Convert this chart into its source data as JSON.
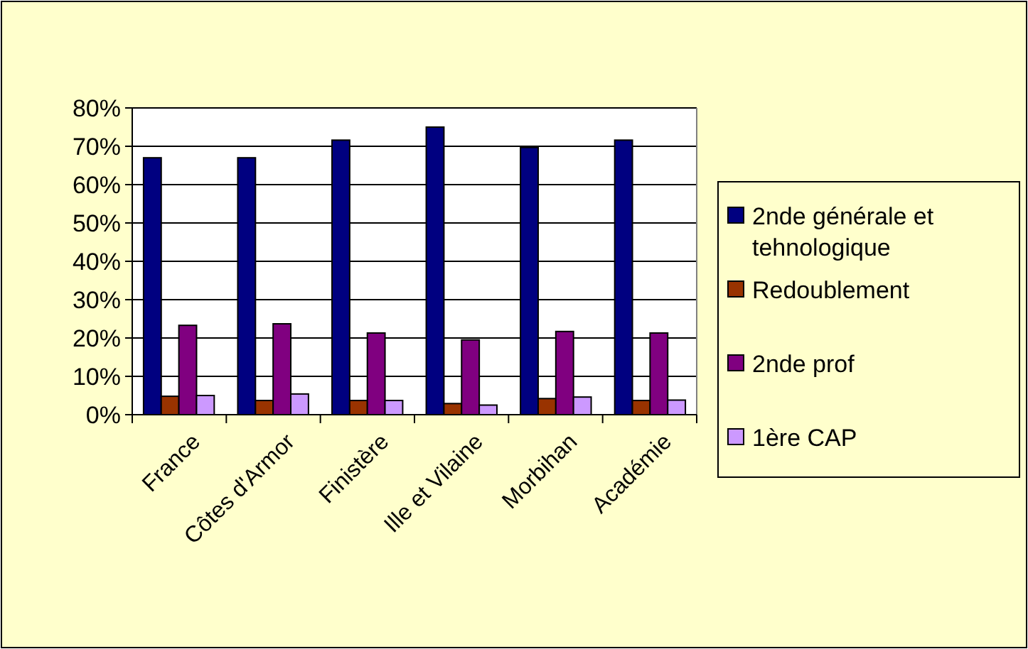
{
  "chart_data": {
    "type": "bar",
    "categories": [
      "France",
      "Côtes d'Armor",
      "Finistère",
      "Ille et Vilaine",
      "Morbihan",
      "Académie"
    ],
    "series": [
      {
        "name": "2nde générale et tehnologique",
        "color": "#000080",
        "values": [
          67,
          67,
          71.6,
          75,
          69.7,
          71.6
        ]
      },
      {
        "name": "Redoublement",
        "color": "#993300",
        "values": [
          4.8,
          3.7,
          3.7,
          2.9,
          4.2,
          3.7
        ]
      },
      {
        "name": "2nde prof",
        "color": "#800080",
        "values": [
          23.3,
          23.7,
          21.3,
          19.5,
          21.7,
          21.3
        ]
      },
      {
        "name": "1ère CAP",
        "color": "#cc99ff",
        "values": [
          5,
          5.4,
          3.7,
          2.5,
          4.6,
          3.8
        ]
      }
    ],
    "ylim": [
      0,
      80
    ],
    "yticks": [
      {
        "value": 0,
        "label": "0%"
      },
      {
        "value": 10,
        "label": "10%"
      },
      {
        "value": 20,
        "label": "20%"
      },
      {
        "value": 30,
        "label": "30%"
      },
      {
        "value": 40,
        "label": "40%"
      },
      {
        "value": 50,
        "label": "50%"
      },
      {
        "value": 60,
        "label": "60%"
      },
      {
        "value": 70,
        "label": "70%"
      },
      {
        "value": 80,
        "label": "80%"
      }
    ],
    "grid": "y",
    "legend": "right"
  }
}
